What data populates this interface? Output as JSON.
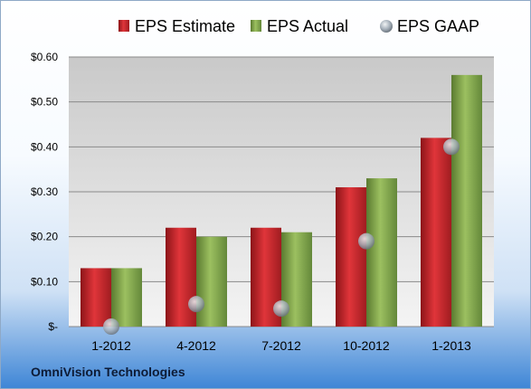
{
  "chart_data": {
    "type": "bar",
    "categories": [
      "1-2012",
      "4-2012",
      "7-2012",
      "10-2012",
      "1-2013"
    ],
    "series": [
      {
        "name": "EPS Estimate",
        "kind": "bar",
        "values": [
          0.13,
          0.22,
          0.22,
          0.31,
          0.42
        ],
        "color": "#c0262c"
      },
      {
        "name": "EPS Actual",
        "kind": "bar",
        "values": [
          0.13,
          0.2,
          0.21,
          0.33,
          0.56
        ],
        "color": "#7ea14a"
      },
      {
        "name": "EPS GAAP",
        "kind": "marker",
        "values": [
          0.0,
          0.05,
          0.04,
          0.19,
          0.4
        ],
        "color": "#a9b4bf"
      }
    ],
    "yticks": [
      {
        "value": 0.0,
        "label": "$-"
      },
      {
        "value": 0.1,
        "label": "$0.10"
      },
      {
        "value": 0.2,
        "label": "$0.20"
      },
      {
        "value": 0.3,
        "label": "$0.30"
      },
      {
        "value": 0.4,
        "label": "$0.40"
      },
      {
        "value": 0.5,
        "label": "$0.50"
      },
      {
        "value": 0.6,
        "label": "$0.60"
      }
    ],
    "ylim": [
      0,
      0.6
    ],
    "grid": true,
    "legend_position": "top"
  },
  "footer": {
    "company": "OmniVision Technologies"
  }
}
